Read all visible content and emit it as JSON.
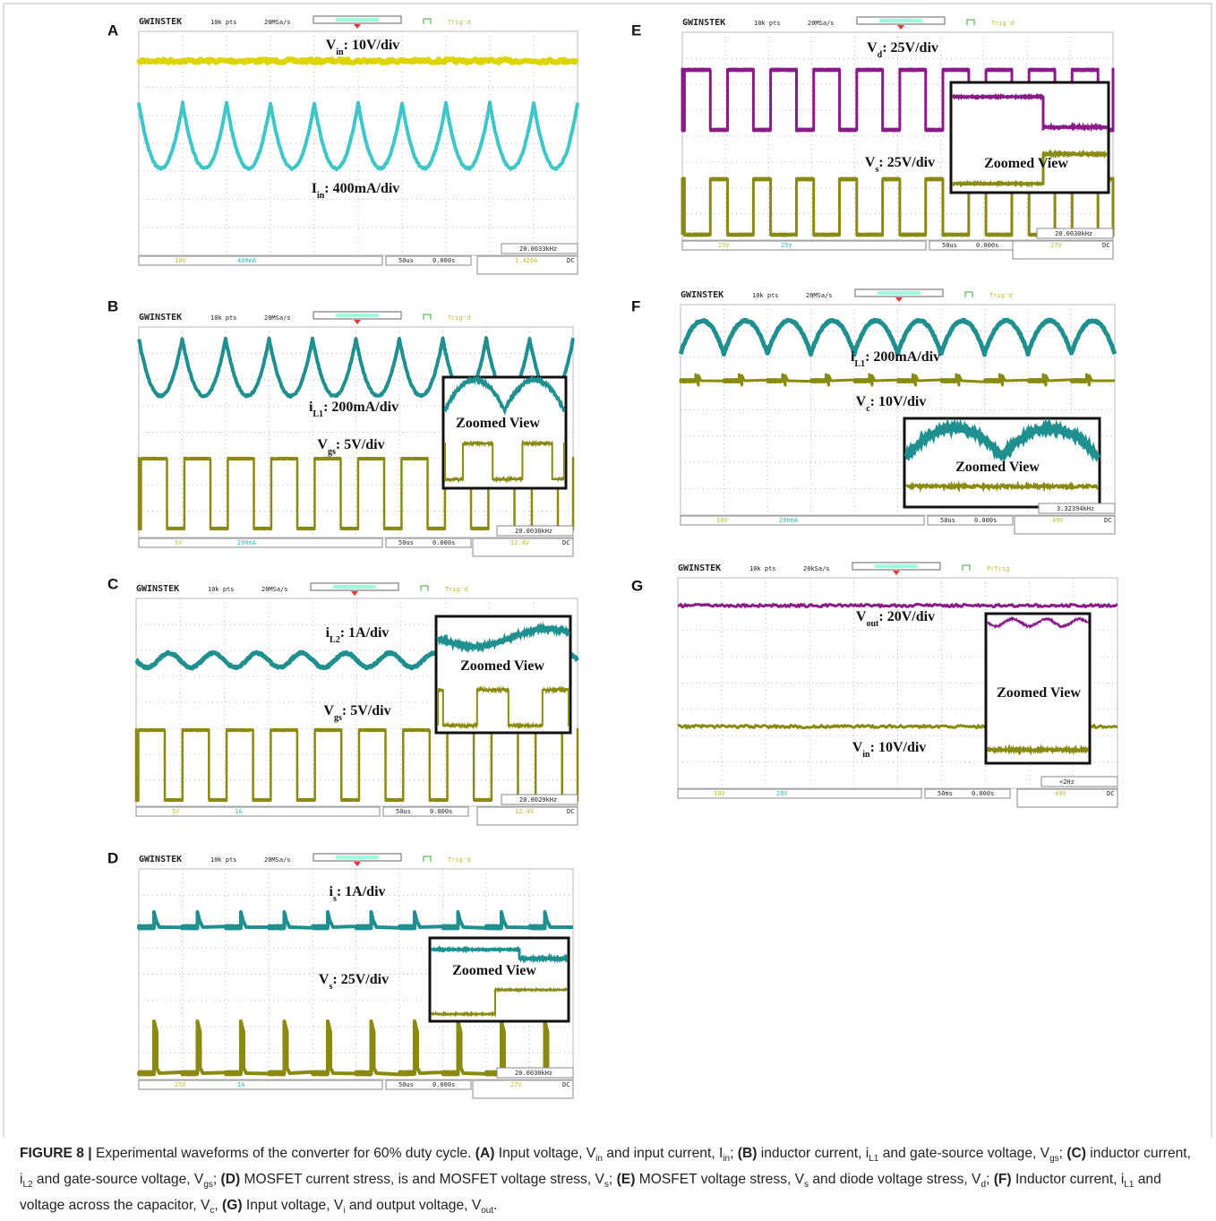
{
  "panels": [
    {
      "letter": "A",
      "brand": "GWINSTEK",
      "points": "10k pts",
      "rate": "20MSa/s",
      "trig": "Trig'd",
      "ch1": "10V",
      "ch2": "400mA",
      "time": "50us",
      "pos": "0.000s",
      "freq": "20.0033kHz",
      "level": "1.420A",
      "coupling": "DC",
      "annotations": [
        [
          "V",
          "in",
          ": 10V/div"
        ],
        [
          "I",
          "in",
          ": 400mA/div"
        ]
      ]
    },
    {
      "letter": "B",
      "brand": "GWINSTEK",
      "points": "10k pts",
      "rate": "20MSa/s",
      "trig": "Trig'd",
      "ch1": "5V",
      "ch2": "200mA",
      "time": "50us",
      "pos": "0.000s",
      "freq": "20.0030kHz",
      "level": "12.4V",
      "coupling": "DC",
      "annotations": [
        [
          "i",
          "L1",
          ": 200mA/div"
        ],
        [
          "V",
          "gs",
          ": 5V/div"
        ]
      ],
      "zoom": "Zoomed View"
    },
    {
      "letter": "C",
      "brand": "GWINSTEK",
      "points": "10k pts",
      "rate": "20MSa/s",
      "trig": "Trig'd",
      "ch1": "5V",
      "ch2": "1A",
      "time": "50us",
      "pos": "0.000s",
      "freq": "20.0029kHz",
      "level": "12.4V",
      "coupling": "DC",
      "annotations": [
        [
          "i",
          "L2",
          ": 1A/div"
        ],
        [
          "V",
          "gs",
          ": 5V/div"
        ]
      ],
      "zoom": "Zoomed View"
    },
    {
      "letter": "D",
      "brand": "GWINSTEK",
      "points": "10k pts",
      "rate": "20MSa/s",
      "trig": "Trig'd",
      "ch1": "25V",
      "ch2": "1A",
      "time": "50us",
      "pos": "0.000s",
      "freq": "20.0030kHz",
      "level": "27V",
      "coupling": "DC",
      "annotations": [
        [
          "i",
          "s",
          ": 1A/div"
        ],
        [
          "V",
          "s",
          ": 25V/div"
        ]
      ],
      "zoom": "Zoomed View"
    },
    {
      "letter": "E",
      "brand": "GWINSTEK",
      "points": "10k pts",
      "rate": "20MSa/s",
      "trig": "Trig'd",
      "ch1": "25V",
      "ch2": "25V",
      "time": "50us",
      "pos": "0.000s",
      "freq": "20.0030kHz",
      "level": "27V",
      "coupling": "DC",
      "annotations": [
        [
          "V",
          "d",
          ": 25V/div"
        ],
        [
          "V",
          "s",
          ": 25V/div"
        ]
      ],
      "zoom": "Zoomed View"
    },
    {
      "letter": "F",
      "brand": "GWINSTEK",
      "points": "10k pts",
      "rate": "20MSa/s",
      "trig": "Trig'd",
      "ch1": "10V",
      "ch2": "200mA",
      "time": "50us",
      "pos": "0.000s",
      "freq": "3.32394kHz",
      "level": "49V",
      "coupling": "DC",
      "annotations": [
        [
          "i",
          "L1",
          ": 200mA/div"
        ],
        [
          "V",
          "c",
          ": 10V/div"
        ]
      ],
      "zoom": "Zoomed View"
    },
    {
      "letter": "G",
      "brand": "GWINSTEK",
      "points": "10k pts",
      "rate": "20kSa/s",
      "trig": "PrTrig",
      "ch1": "10V",
      "ch2": "20V",
      "time": "50ms",
      "pos": "0.000s",
      "freq": "<2Hz",
      "level": "49V",
      "coupling": "DC",
      "annotations": [
        [
          "V",
          "out",
          ": 20V/div"
        ],
        [
          "V",
          "in",
          ": 10V/div"
        ]
      ],
      "zoom": "Zoomed View"
    }
  ],
  "caption": [
    "FIGURE 8 |",
    " Experimental waveforms of the converter for 60% duty cycle. ",
    "(A)",
    " Input voltage, V",
    "in",
    " and input current, I",
    "in",
    "; ",
    "(B)",
    " inductor current, i",
    "L1",
    " and gate-source voltage, V",
    "gs",
    "; ",
    "(C)",
    " inductor current, i",
    "L2",
    " and gate-source voltage, V",
    "gs",
    "; ",
    "(D)",
    " MOSFET current stress, is and MOSFET voltage stress, V",
    "s",
    "; ",
    "(E)",
    " MOSFET voltage stress, V",
    "s",
    " and diode voltage stress, V",
    "d",
    "; ",
    "(F)",
    " Inductor current, i",
    "L1",
    " and voltage across the capacitor, V",
    "c",
    ", ",
    "(G)",
    " Input voltage, V",
    "i",
    " and output voltage, V",
    "out",
    "."
  ]
}
